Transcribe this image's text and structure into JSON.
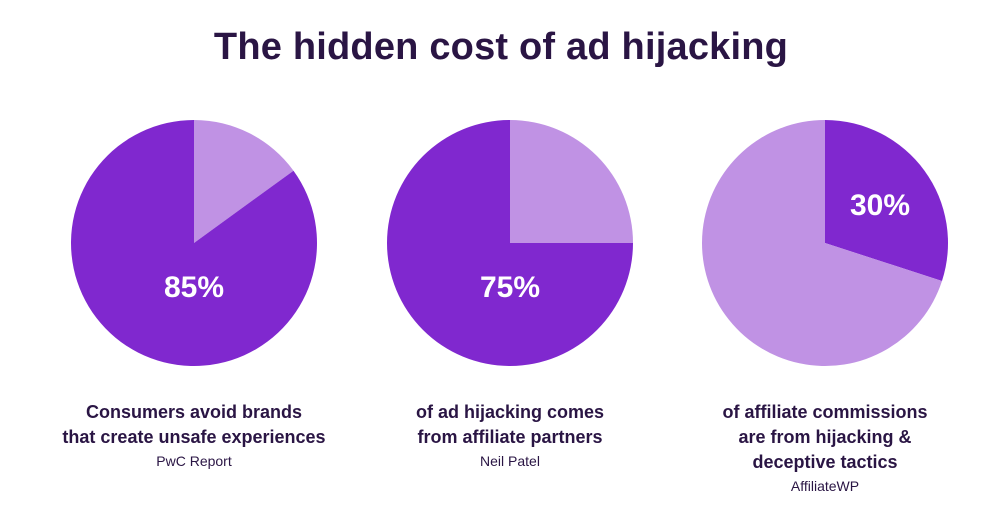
{
  "title": "The hidden cost of ad hijacking",
  "colors": {
    "dark_purple": "#8028cf",
    "light_purple": "#c092e4",
    "text": "#2a1544"
  },
  "chart_data": [
    {
      "type": "pie",
      "label": "85%",
      "slices": [
        {
          "value": 85,
          "color": "#8028cf"
        },
        {
          "value": 15,
          "color": "#c092e4"
        }
      ],
      "caption_lines": [
        "Consumers avoid brands",
        "that create unsafe experiences"
      ],
      "source": "PwC Report"
    },
    {
      "type": "pie",
      "label": "75%",
      "slices": [
        {
          "value": 75,
          "color": "#8028cf"
        },
        {
          "value": 25,
          "color": "#c092e4"
        }
      ],
      "caption_lines": [
        "of ad hijacking comes",
        "from affiliate partners"
      ],
      "source": "Neil Patel"
    },
    {
      "type": "pie",
      "label": "30%",
      "slices": [
        {
          "value": 30,
          "color": "#8028cf"
        },
        {
          "value": 70,
          "color": "#c092e4"
        }
      ],
      "caption_lines": [
        "of affiliate commissions",
        "are from hijacking &",
        "deceptive tactics"
      ],
      "source": "AffiliateWP"
    }
  ]
}
